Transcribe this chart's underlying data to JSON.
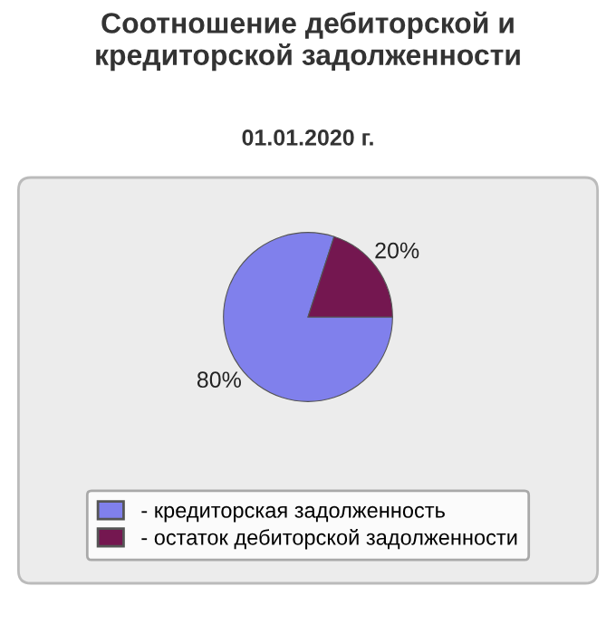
{
  "chart_data": {
    "type": "pie",
    "title": "Соотношение дебиторской и кредиторской задолженности",
    "subtitle": "01.01.2020 г.",
    "categories": [
      "- кредиторская задолженность",
      "- остаток дебиторской задолженности"
    ],
    "values": [
      80,
      20
    ],
    "value_labels": [
      "80%",
      "20%"
    ],
    "colors": [
      "#8080ec",
      "#741750"
    ],
    "legend": "bottom"
  }
}
